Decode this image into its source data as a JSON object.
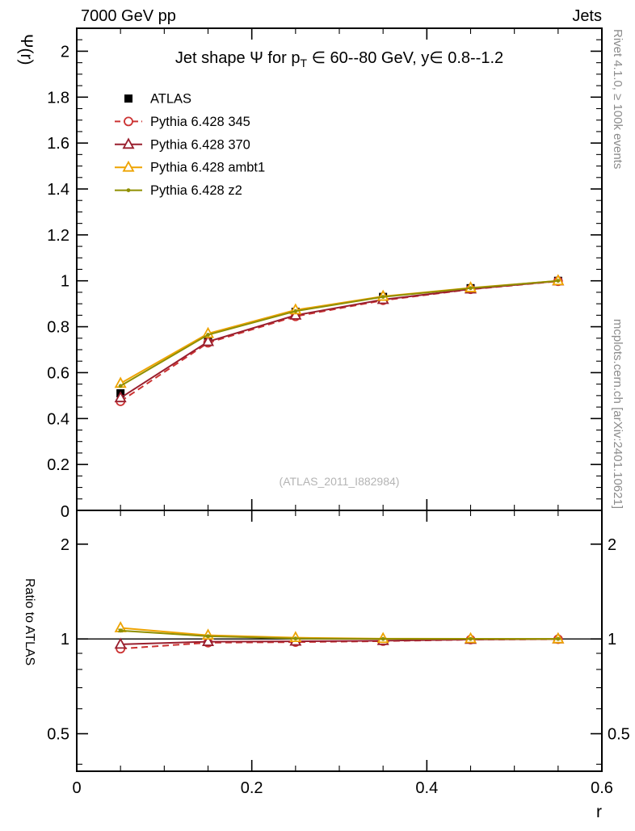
{
  "header": {
    "left": "7000 GeV pp",
    "right": "Jets"
  },
  "side_texts": {
    "top_right": "Rivet 4.1.0, ≥ 100k events",
    "bottom_right": "mcplots.cern.ch [arXiv:2401.10621]"
  },
  "watermark": "(ATLAS_2011_I882984)",
  "chart_data": {
    "type": "line",
    "title": {
      "pre": "Jet shape Ψ for p",
      "sub": "T",
      "post": " ∈ 60--80 GeV, y∈ 0.8--1.2"
    },
    "xlabel": "r",
    "ylabel_main": "Ψ(r)",
    "ylabel_ratio": "Ratio to ATLAS",
    "x": [
      0.05,
      0.15,
      0.25,
      0.35,
      0.45,
      0.55
    ],
    "xlim": [
      0,
      0.6
    ],
    "xticks": [
      0,
      0.2,
      0.4,
      0.6
    ],
    "main": {
      "ylim": [
        0,
        2.1
      ],
      "ytick_step": 0.2,
      "ytick_minor": 0.05
    },
    "ratio": {
      "scale": "log",
      "ylim": [
        0.38,
        2.56
      ],
      "yticks": [
        0.5,
        1,
        2
      ],
      "yticks_minor": [
        0.4,
        0.6,
        0.7,
        0.8,
        0.9
      ],
      "reference": 1
    },
    "legend_position": "top-left",
    "grid": false,
    "series": [
      {
        "name": "ATLAS",
        "color": "#000000",
        "marker": "square-filled",
        "line": "none",
        "values": [
          0.51,
          0.75,
          0.865,
          0.93,
          0.968,
          1.0
        ],
        "ratio": null
      },
      {
        "name": "Pythia 6.428 345",
        "color": "#cc3333",
        "marker": "circle-open",
        "line": "dashed",
        "values": [
          0.475,
          0.73,
          0.845,
          0.915,
          0.963,
          0.998
        ],
        "ratio": [
          0.931,
          0.973,
          0.977,
          0.984,
          0.995,
          0.998
        ],
        "ratio_err": [
          0.012,
          0.007,
          0.005,
          0.004,
          0.004,
          0.006
        ]
      },
      {
        "name": "Pythia 6.428 370",
        "color": "#991f2e",
        "marker": "triangle-open",
        "line": "solid",
        "values": [
          0.49,
          0.735,
          0.85,
          0.918,
          0.964,
          0.999
        ],
        "ratio": [
          0.961,
          0.98,
          0.983,
          0.987,
          0.996,
          0.999
        ],
        "ratio_err": [
          0.012,
          0.007,
          0.005,
          0.004,
          0.004,
          0.006
        ]
      },
      {
        "name": "Pythia 6.428 ambt1",
        "color": "#eea300",
        "marker": "triangle-open",
        "line": "solid",
        "values": [
          0.553,
          0.77,
          0.873,
          0.932,
          0.969,
          1.0
        ],
        "ratio": [
          1.084,
          1.027,
          1.009,
          1.002,
          1.001,
          1.0
        ],
        "ratio_err": [
          0.012,
          0.007,
          0.005,
          0.004,
          0.004,
          0.005
        ]
      },
      {
        "name": "Pythia 6.428 z2",
        "color": "#8f8f00",
        "marker": "dot",
        "line": "solid",
        "values": [
          0.542,
          0.765,
          0.868,
          0.93,
          0.968,
          1.0
        ],
        "ratio": [
          1.063,
          1.02,
          1.003,
          1.0,
          1.0,
          1.0
        ],
        "ratio_err": [
          0.01,
          0.006,
          0.004,
          0.003,
          0.003,
          0.004
        ]
      }
    ]
  }
}
